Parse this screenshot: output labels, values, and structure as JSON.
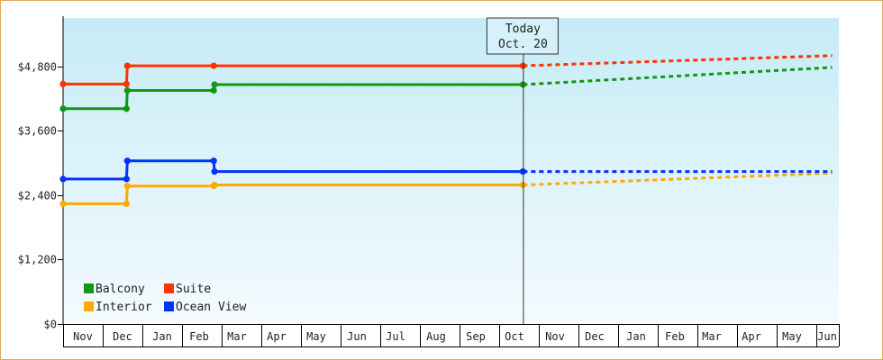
{
  "chart_data": {
    "type": "line",
    "title": "",
    "xlabel": "",
    "ylabel": "",
    "y_tick_labels": [
      "$0",
      "$1,200",
      "$2,400",
      "$3,600",
      "$4,800"
    ],
    "y_ticks": [
      0,
      1200,
      2400,
      3600,
      4800
    ],
    "ylim": [
      0,
      5700
    ],
    "x_tick_labels": [
      "Nov",
      "Dec",
      "Jan",
      "Feb",
      "Mar",
      "Apr",
      "May",
      "Jun",
      "Jul",
      "Aug",
      "Sep",
      "Oct",
      "Nov",
      "Dec",
      "Jan",
      "Feb",
      "Mar",
      "Apr",
      "May",
      "Jun"
    ],
    "today": {
      "line1": "Today",
      "line2": "Oct. 20"
    },
    "legend_position": "bottom-left",
    "series": [
      {
        "name": "Balcony",
        "color": "#119911",
        "actual": [
          [
            0,
            4010
          ],
          [
            1.6,
            4010
          ],
          [
            1.62,
            4350
          ],
          [
            3.8,
            4350
          ],
          [
            3.82,
            4460
          ],
          [
            11.6,
            4460
          ]
        ],
        "projected": [
          [
            11.6,
            4460
          ],
          [
            19.7,
            4780
          ]
        ],
        "markers": [
          [
            0,
            4010
          ],
          [
            1.6,
            4010
          ],
          [
            1.62,
            4350
          ],
          [
            3.8,
            4350
          ],
          [
            3.82,
            4460
          ],
          [
            11.6,
            4460
          ]
        ]
      },
      {
        "name": "Suite",
        "color": "#ff3300",
        "actual": [
          [
            0,
            4470
          ],
          [
            1.6,
            4470
          ],
          [
            1.62,
            4810
          ],
          [
            3.8,
            4810
          ],
          [
            11.6,
            4810
          ]
        ],
        "projected": [
          [
            11.6,
            4810
          ],
          [
            19.7,
            5000
          ]
        ],
        "markers": [
          [
            0,
            4470
          ],
          [
            1.6,
            4470
          ],
          [
            1.62,
            4810
          ],
          [
            3.8,
            4810
          ],
          [
            11.6,
            4810
          ]
        ]
      },
      {
        "name": "Interior",
        "color": "#ffaa00",
        "actual": [
          [
            0,
            2240
          ],
          [
            1.6,
            2240
          ],
          [
            1.62,
            2570
          ],
          [
            3.8,
            2570
          ],
          [
            3.82,
            2590
          ],
          [
            11.6,
            2590
          ]
        ],
        "projected": [
          [
            11.6,
            2590
          ],
          [
            19.7,
            2810
          ]
        ],
        "markers": [
          [
            0,
            2240
          ],
          [
            1.6,
            2240
          ],
          [
            1.62,
            2570
          ],
          [
            3.8,
            2570
          ],
          [
            3.82,
            2590
          ],
          [
            11.6,
            2590
          ]
        ]
      },
      {
        "name": "Ocean View",
        "color": "#0033ff",
        "actual": [
          [
            0,
            2700
          ],
          [
            1.6,
            2700
          ],
          [
            1.62,
            3040
          ],
          [
            3.8,
            3040
          ],
          [
            3.82,
            2840
          ],
          [
            11.6,
            2840
          ]
        ],
        "projected": [
          [
            11.6,
            2840
          ],
          [
            19.7,
            2840
          ]
        ],
        "markers": [
          [
            0,
            2700
          ],
          [
            1.6,
            2700
          ],
          [
            1.62,
            3040
          ],
          [
            3.8,
            3040
          ],
          [
            3.82,
            2840
          ],
          [
            11.6,
            2840
          ]
        ]
      }
    ],
    "legend": [
      {
        "label": "Balcony",
        "color": "#119911"
      },
      {
        "label": "Suite",
        "color": "#ff3300"
      },
      {
        "label": "Interior",
        "color": "#ffaa00"
      },
      {
        "label": "Ocean View",
        "color": "#0033ff"
      }
    ]
  }
}
